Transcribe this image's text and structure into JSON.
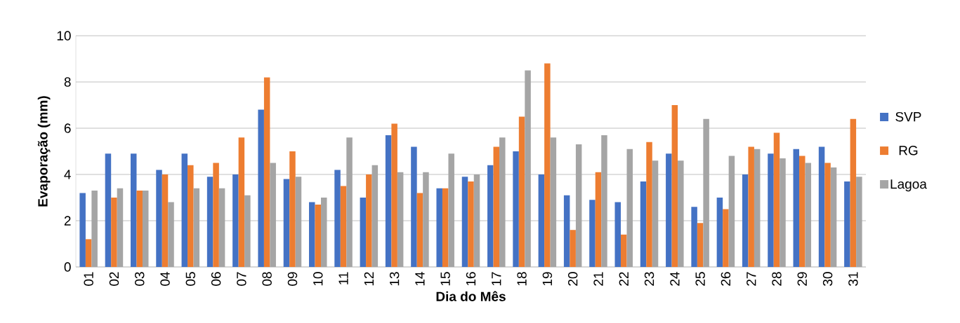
{
  "chart_data": {
    "type": "bar",
    "xlabel": "Dia do Mês",
    "ylabel": "Evaporação (mm)",
    "categories": [
      "01",
      "02",
      "03",
      "04",
      "05",
      "06",
      "07",
      "08",
      "09",
      "10",
      "11",
      "12",
      "13",
      "14",
      "15",
      "16",
      "17",
      "18",
      "19",
      "20",
      "21",
      "22",
      "23",
      "24",
      "25",
      "26",
      "27",
      "28",
      "29",
      "30",
      "31"
    ],
    "series": [
      {
        "name": "SVP",
        "color": "#4472c4",
        "values": [
          3.2,
          4.9,
          4.9,
          4.2,
          4.9,
          3.9,
          4.0,
          6.8,
          3.8,
          2.8,
          4.2,
          3.0,
          5.7,
          5.2,
          3.4,
          3.9,
          4.4,
          5.0,
          4.0,
          3.1,
          2.9,
          2.8,
          3.7,
          4.9,
          2.6,
          3.0,
          4.0,
          4.9,
          5.1,
          5.2,
          3.7
        ]
      },
      {
        "name": "RG",
        "color": "#ed7d31",
        "values": [
          1.2,
          3.0,
          3.3,
          4.0,
          4.4,
          4.5,
          5.6,
          8.2,
          5.0,
          2.7,
          3.5,
          4.0,
          6.2,
          3.2,
          3.4,
          3.7,
          5.2,
          6.5,
          8.8,
          1.6,
          4.1,
          1.4,
          5.4,
          7.0,
          1.9,
          2.5,
          5.2,
          5.8,
          4.8,
          4.5,
          6.4
        ]
      },
      {
        "name": "Lagoa",
        "color": "#a5a5a5",
        "values": [
          3.3,
          3.4,
          3.3,
          2.8,
          3.4,
          3.4,
          3.1,
          4.5,
          3.9,
          3.0,
          5.6,
          4.4,
          4.1,
          4.1,
          4.9,
          4.0,
          5.6,
          8.5,
          5.6,
          5.3,
          5.7,
          5.1,
          4.6,
          4.6,
          6.4,
          4.8,
          5.1,
          4.7,
          4.5,
          4.3,
          3.9
        ]
      }
    ],
    "ylim": [
      0,
      10
    ],
    "yticks": [
      0,
      2,
      4,
      6,
      8,
      10
    ],
    "grid": "y",
    "legend": "right"
  }
}
